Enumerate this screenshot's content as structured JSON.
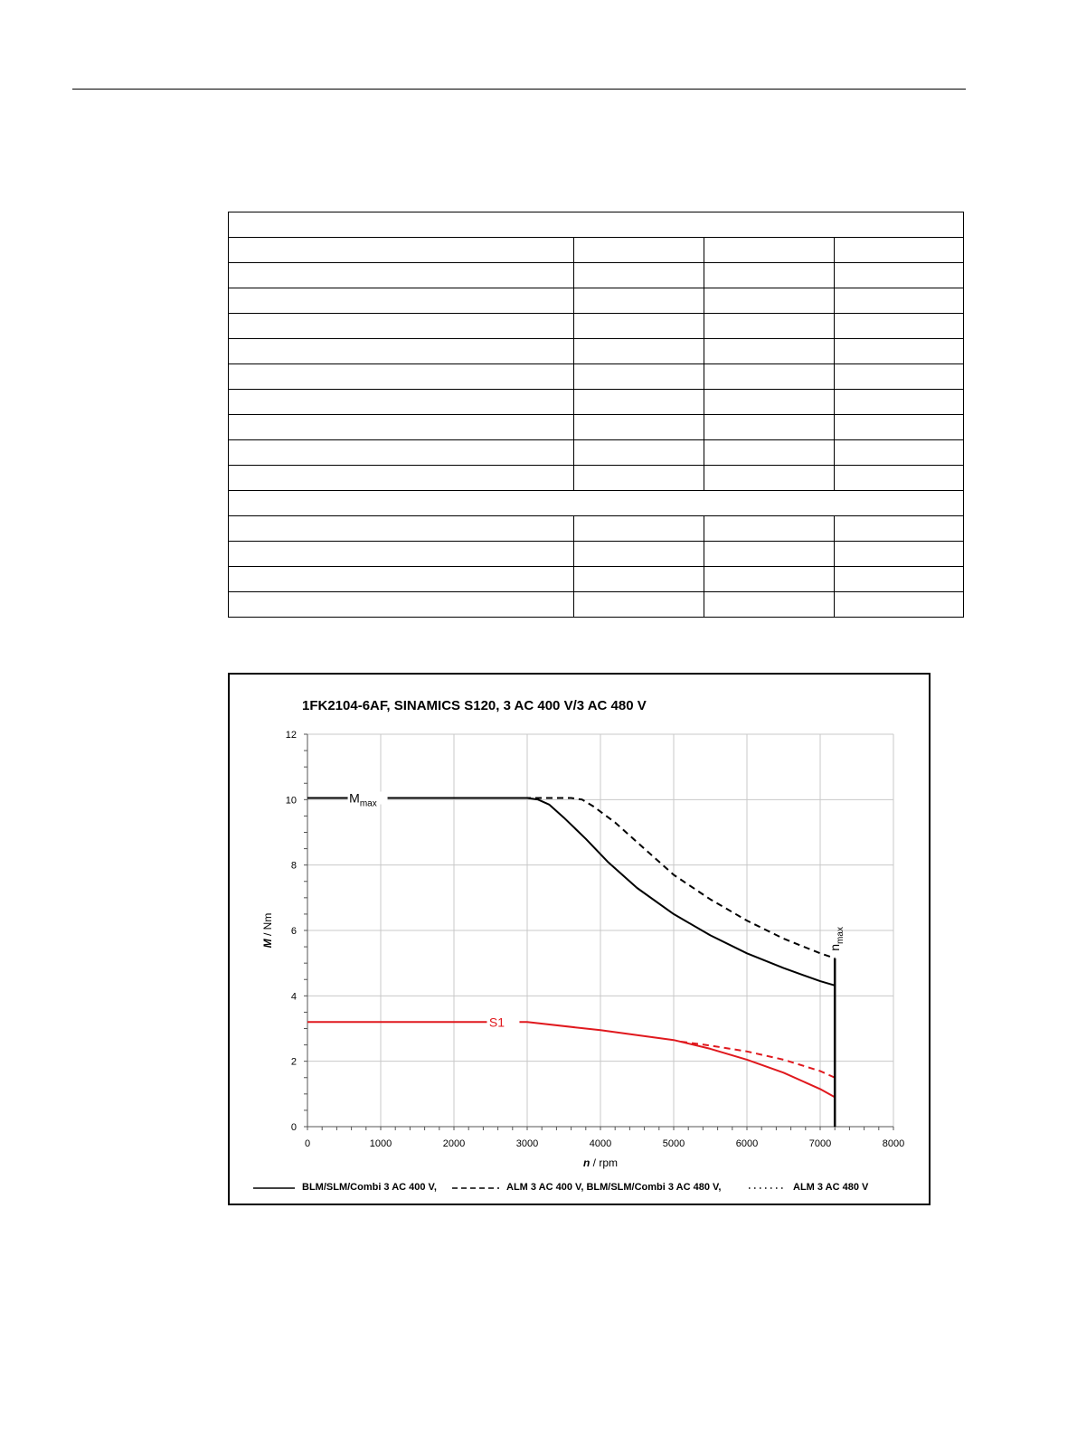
{
  "table": {
    "rows": [
      {
        "type": "full"
      },
      {
        "type": "cols"
      },
      {
        "type": "cols"
      },
      {
        "type": "cols"
      },
      {
        "type": "cols"
      },
      {
        "type": "cols"
      },
      {
        "type": "cols"
      },
      {
        "type": "cols"
      },
      {
        "type": "cols"
      },
      {
        "type": "cols"
      },
      {
        "type": "cols"
      },
      {
        "type": "full"
      },
      {
        "type": "cols"
      },
      {
        "type": "cols"
      },
      {
        "type": "cols"
      },
      {
        "type": "cols"
      }
    ]
  },
  "chart_data": {
    "type": "line",
    "title": "1FK2104-6AF,  SINAMICS S120,  3 AC 400 V/3 AC 480 V",
    "xlabel_italic": "n",
    "xlabel_unit": " / rpm",
    "ylabel_italic": "M",
    "ylabel_unit": " / Nm",
    "xlim": [
      0,
      8000
    ],
    "ylim": [
      0,
      12
    ],
    "xticks": [
      0,
      1000,
      2000,
      3000,
      4000,
      5000,
      6000,
      7000,
      8000
    ],
    "yticks": [
      0,
      2,
      4,
      6,
      8,
      10,
      12
    ],
    "grid": true,
    "legend_position": "bottom",
    "series": [
      {
        "name": "BLM/SLM/Combi 3 AC 400 V,",
        "curve": "Mmax",
        "color": "#000000",
        "dash": "solid",
        "x": [
          0,
          3000,
          3150,
          3300,
          3500,
          3800,
          4100,
          4500,
          5000,
          5500,
          6000,
          6500,
          7000,
          7200
        ],
        "y": [
          10.05,
          10.05,
          10.0,
          9.85,
          9.45,
          8.8,
          8.1,
          7.3,
          6.5,
          5.85,
          5.3,
          4.85,
          4.45,
          4.32
        ]
      },
      {
        "name": "ALM 3 AC 400 V, BLM/SLM/Combi 3 AC 480 V,",
        "curve": "Mmax",
        "color": "#000000",
        "dash": "dashed",
        "x": [
          0,
          3600,
          3750,
          3900,
          4200,
          4600,
          5000,
          5500,
          6000,
          6500,
          7000,
          7200
        ],
        "y": [
          10.05,
          10.05,
          10.0,
          9.8,
          9.3,
          8.5,
          7.7,
          6.95,
          6.3,
          5.75,
          5.3,
          5.15
        ]
      },
      {
        "name": "BLM/SLM/Combi 3 AC 400 V,",
        "curve": "S1",
        "color": "#e0191e",
        "dash": "solid",
        "x": [
          0,
          3000,
          4000,
          5000,
          5500,
          6000,
          6500,
          7000,
          7200
        ],
        "y": [
          3.2,
          3.2,
          2.95,
          2.65,
          2.38,
          2.05,
          1.65,
          1.15,
          0.9
        ]
      },
      {
        "name": "ALM 3 AC 400 V, BLM/SLM/Combi 3 AC 480 V,",
        "curve": "S1",
        "color": "#e0191e",
        "dash": "dashed",
        "x": [
          5100,
          5500,
          6000,
          6500,
          7000,
          7200
        ],
        "y": [
          2.6,
          2.48,
          2.3,
          2.05,
          1.7,
          1.5
        ]
      }
    ],
    "nmax": {
      "x": 7200,
      "y_top": 5.15
    },
    "annotations": {
      "mmax": {
        "base": "M",
        "sub": "max"
      },
      "s1": "S1",
      "nmax": {
        "base": "n",
        "sub": "max"
      }
    },
    "legend": [
      {
        "label": "BLM/SLM/Combi 3 AC 400 V,",
        "style": "solid"
      },
      {
        "label": "ALM 3 AC 400 V, BLM/SLM/Combi 3 AC 480 V,",
        "style": "dashed"
      },
      {
        "label": "ALM 3 AC 480 V",
        "style": "dotted"
      }
    ]
  }
}
